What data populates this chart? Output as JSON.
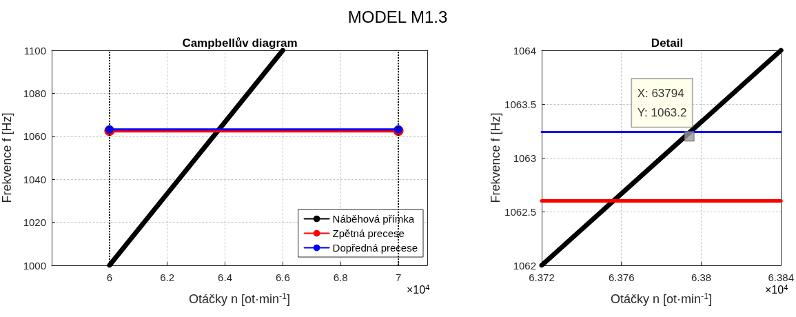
{
  "chart_data": [
    {
      "type": "line",
      "title": "Campbellův diagram",
      "xlabel": "Otáčky n [ot·min$^{-1}$]",
      "ylabel": "Frekvence f [Hz]",
      "annotations": [
        "MODEL M1.3",
        "×10$^{4}$"
      ],
      "xlim": [
        5.8,
        7.1
      ],
      "xticks": [
        6,
        6.2,
        6.4,
        6.6,
        6.8,
        7
      ],
      "ylim": [
        1000,
        1100
      ],
      "yticks": [
        1000,
        1020,
        1040,
        1060,
        1080,
        1100
      ],
      "grid": true,
      "legend": "bottom right",
      "ref_lines": [
        {
          "axis": "x",
          "value": 6,
          "color": "#000000",
          "line_style": "dotted"
        },
        {
          "axis": "x",
          "value": 7,
          "color": "#000000",
          "line_style": "dotted"
        }
      ],
      "series": [
        {
          "name": "Náběhová přímka",
          "color": "#000000",
          "x": [
            6,
            6.6
          ],
          "values": [
            1000,
            1100
          ],
          "marker": "none"
        },
        {
          "name": "Zpětná precese",
          "color": "#ff0000",
          "x": [
            6,
            7
          ],
          "values": [
            1062.6,
            1062.6
          ],
          "marker": "circle"
        },
        {
          "name": "Dopředná precese",
          "color": "#0000ff",
          "x": [
            6,
            7
          ],
          "values": [
            1063.2,
            1063.2
          ],
          "marker": "circle"
        }
      ]
    },
    {
      "type": "line",
      "title": "Detail",
      "xlabel": "Otáčky n [ot·min$^{-1}$]",
      "ylabel": "Frekvence f [Hz]",
      "annotations": [
        "×10$^{4}$",
        {
          "text": "X: 63794\nY: 1063.2",
          "x": 6.3794,
          "y": 1063.2
        }
      ],
      "xlim": [
        6.372,
        6.384
      ],
      "xticks": [
        6.372,
        6.376,
        6.38,
        6.384
      ],
      "ylim": [
        1062,
        1064
      ],
      "yticks": [
        1062,
        1062.5,
        1063,
        1063.5,
        1064
      ],
      "grid": true,
      "series": [
        {
          "color": "#000000",
          "x": [
            6.372,
            6.384
          ],
          "values": [
            1062,
            1064
          ],
          "marker": "none"
        },
        {
          "color": "#ff0000",
          "x": [
            6.372,
            6.384
          ],
          "values": [
            1062.6,
            1062.6
          ],
          "marker": "none"
        },
        {
          "color": "#0000ff",
          "x": [
            6.372,
            6.384
          ],
          "values": [
            1063.24,
            1063.24
          ],
          "marker": "none"
        }
      ]
    }
  ]
}
